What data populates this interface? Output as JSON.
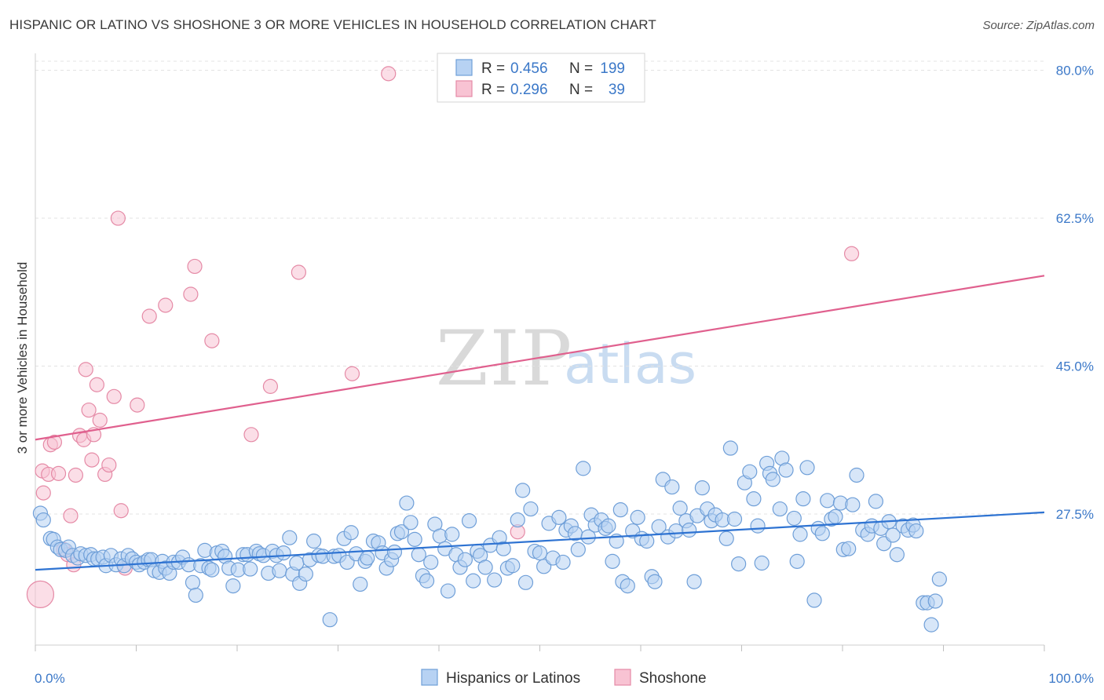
{
  "title": "HISPANIC OR LATINO VS SHOSHONE 3 OR MORE VEHICLES IN HOUSEHOLD CORRELATION CHART",
  "source": "Source: ZipAtlas.com",
  "watermark": {
    "part1": "ZIP",
    "part2": "atlas"
  },
  "colors": {
    "blue_fill": "#b7d2f3",
    "blue_stroke": "#6f9fd8",
    "blue_line": "#2e73d2",
    "pink_fill": "#f8c3d3",
    "pink_stroke": "#e58aa6",
    "pink_line": "#e0608e",
    "tick_text": "#3b78c8",
    "grid": "#e3e3e3"
  },
  "legend": {
    "rows": [
      {
        "r_label": "R =",
        "r_value": "0.456",
        "n_label": "N =",
        "n_value": "199"
      },
      {
        "r_label": "R =",
        "r_value": "0.296",
        "n_label": "N =",
        "n_value": "39"
      }
    ]
  },
  "chart_data": {
    "type": "scatter",
    "xlabel": "",
    "ylabel": "3 or more Vehicles in Household",
    "xlim": [
      0,
      100
    ],
    "ylim": [
      12,
      82
    ],
    "x_tick_labels": [
      "0.0%",
      "100.0%"
    ],
    "y_ticks": [
      {
        "value": 80,
        "label": "80.0%"
      },
      {
        "value": 62.5,
        "label": "62.5%"
      },
      {
        "value": 45,
        "label": "45.0%"
      },
      {
        "value": 27.5,
        "label": "27.5%"
      }
    ],
    "grid": true,
    "legend_position": "top-center",
    "series": [
      {
        "name": "Hispanics or Latinos",
        "color": "#b7d2f3",
        "R": 0.456,
        "N": 199,
        "trend": {
          "x": [
            0,
            100
          ],
          "y": [
            20.9,
            27.7
          ]
        },
        "points": [
          [
            0.5,
            27.6
          ],
          [
            0.8,
            26.8
          ],
          [
            1.5,
            24.6
          ],
          [
            1.8,
            24.5
          ],
          [
            2.2,
            23.6
          ],
          [
            2.5,
            23.3
          ],
          [
            3.0,
            23.2
          ],
          [
            3.3,
            23.6
          ],
          [
            3.7,
            22.6
          ],
          [
            4.2,
            22.3
          ],
          [
            4.5,
            22.8
          ],
          [
            5.0,
            22.6
          ],
          [
            5.5,
            22.7
          ],
          [
            5.8,
            22.2
          ],
          [
            6.2,
            22.2
          ],
          [
            6.7,
            22.4
          ],
          [
            7.0,
            21.4
          ],
          [
            7.5,
            22.6
          ],
          [
            8.0,
            21.5
          ],
          [
            8.5,
            22.2
          ],
          [
            8.8,
            21.4
          ],
          [
            9.2,
            22.6
          ],
          [
            9.6,
            22.2
          ],
          [
            10.0,
            21.8
          ],
          [
            10.3,
            21.5
          ],
          [
            10.8,
            21.8
          ],
          [
            11.2,
            22.1
          ],
          [
            11.5,
            22.1
          ],
          [
            11.8,
            20.8
          ],
          [
            12.3,
            20.6
          ],
          [
            12.6,
            21.9
          ],
          [
            12.9,
            21.1
          ],
          [
            13.3,
            20.5
          ],
          [
            13.7,
            21.8
          ],
          [
            14.2,
            21.8
          ],
          [
            14.6,
            22.4
          ],
          [
            15.2,
            21.5
          ],
          [
            15.6,
            19.4
          ],
          [
            15.9,
            17.9
          ],
          [
            16.4,
            21.4
          ],
          [
            16.8,
            23.2
          ],
          [
            17.2,
            21.1
          ],
          [
            17.5,
            20.9
          ],
          [
            18.0,
            22.9
          ],
          [
            18.5,
            23.1
          ],
          [
            18.8,
            22.5
          ],
          [
            19.2,
            21.1
          ],
          [
            19.6,
            19.0
          ],
          [
            20.1,
            20.9
          ],
          [
            20.6,
            22.7
          ],
          [
            21.0,
            22.7
          ],
          [
            21.3,
            21.0
          ],
          [
            21.9,
            23.1
          ],
          [
            22.2,
            22.8
          ],
          [
            22.6,
            22.6
          ],
          [
            23.1,
            20.5
          ],
          [
            23.5,
            23.1
          ],
          [
            23.9,
            22.6
          ],
          [
            24.2,
            20.8
          ],
          [
            24.6,
            22.9
          ],
          [
            25.2,
            24.7
          ],
          [
            25.5,
            20.4
          ],
          [
            25.9,
            21.7
          ],
          [
            26.2,
            19.3
          ],
          [
            26.8,
            20.4
          ],
          [
            27.2,
            22.1
          ],
          [
            27.6,
            24.3
          ],
          [
            28.1,
            22.6
          ],
          [
            28.5,
            22.5
          ],
          [
            29.2,
            15.0
          ],
          [
            29.6,
            22.5
          ],
          [
            30.1,
            22.6
          ],
          [
            30.6,
            24.6
          ],
          [
            30.9,
            21.8
          ],
          [
            31.3,
            25.3
          ],
          [
            31.8,
            22.8
          ],
          [
            32.2,
            19.2
          ],
          [
            32.7,
            21.9
          ],
          [
            32.9,
            22.3
          ],
          [
            33.5,
            24.3
          ],
          [
            34.0,
            24.1
          ],
          [
            34.4,
            22.9
          ],
          [
            34.8,
            21.1
          ],
          [
            35.3,
            22.1
          ],
          [
            35.6,
            23.0
          ],
          [
            35.9,
            25.2
          ],
          [
            36.3,
            25.4
          ],
          [
            36.8,
            28.8
          ],
          [
            37.2,
            26.5
          ],
          [
            37.6,
            24.5
          ],
          [
            38.0,
            22.7
          ],
          [
            38.4,
            20.2
          ],
          [
            38.8,
            19.6
          ],
          [
            39.2,
            21.8
          ],
          [
            39.6,
            26.3
          ],
          [
            40.1,
            24.9
          ],
          [
            40.6,
            23.4
          ],
          [
            40.9,
            18.4
          ],
          [
            41.3,
            25.1
          ],
          [
            41.7,
            22.7
          ],
          [
            42.1,
            21.2
          ],
          [
            42.6,
            22.1
          ],
          [
            43.0,
            26.7
          ],
          [
            43.4,
            19.6
          ],
          [
            43.8,
            23.1
          ],
          [
            44.1,
            22.6
          ],
          [
            44.6,
            21.2
          ],
          [
            45.1,
            23.8
          ],
          [
            45.5,
            19.7
          ],
          [
            46.0,
            24.7
          ],
          [
            46.4,
            23.4
          ],
          [
            46.8,
            21.1
          ],
          [
            47.3,
            21.4
          ],
          [
            47.8,
            26.8
          ],
          [
            48.3,
            30.3
          ],
          [
            48.6,
            19.4
          ],
          [
            49.1,
            28.1
          ],
          [
            49.5,
            23.1
          ],
          [
            50.0,
            22.9
          ],
          [
            50.4,
            21.3
          ],
          [
            50.9,
            26.4
          ],
          [
            51.3,
            22.3
          ],
          [
            51.9,
            27.1
          ],
          [
            52.3,
            21.8
          ],
          [
            52.6,
            25.6
          ],
          [
            53.1,
            26.1
          ],
          [
            53.5,
            25.2
          ],
          [
            53.8,
            23.3
          ],
          [
            54.3,
            32.9
          ],
          [
            54.8,
            24.8
          ],
          [
            55.1,
            27.4
          ],
          [
            55.5,
            26.2
          ],
          [
            56.1,
            26.8
          ],
          [
            56.5,
            25.8
          ],
          [
            56.8,
            26.1
          ],
          [
            57.2,
            21.9
          ],
          [
            57.6,
            24.3
          ],
          [
            58.0,
            28.0
          ],
          [
            58.2,
            19.5
          ],
          [
            58.7,
            19.0
          ],
          [
            59.2,
            25.5
          ],
          [
            59.7,
            27.1
          ],
          [
            60.1,
            24.6
          ],
          [
            60.6,
            24.3
          ],
          [
            61.1,
            20.1
          ],
          [
            61.4,
            19.5
          ],
          [
            61.8,
            26.0
          ],
          [
            62.2,
            31.6
          ],
          [
            62.7,
            24.8
          ],
          [
            63.1,
            30.7
          ],
          [
            63.5,
            25.5
          ],
          [
            63.9,
            28.2
          ],
          [
            64.5,
            26.7
          ],
          [
            64.8,
            25.6
          ],
          [
            65.3,
            19.5
          ],
          [
            65.6,
            27.3
          ],
          [
            66.1,
            30.6
          ],
          [
            66.6,
            28.1
          ],
          [
            67.0,
            26.7
          ],
          [
            67.4,
            27.4
          ],
          [
            68.1,
            26.8
          ],
          [
            68.5,
            24.6
          ],
          [
            68.9,
            35.3
          ],
          [
            69.3,
            26.9
          ],
          [
            69.7,
            21.6
          ],
          [
            70.3,
            31.2
          ],
          [
            70.8,
            32.5
          ],
          [
            71.2,
            29.3
          ],
          [
            71.6,
            26.1
          ],
          [
            72.0,
            21.7
          ],
          [
            72.5,
            33.5
          ],
          [
            72.8,
            32.3
          ],
          [
            73.1,
            31.6
          ],
          [
            73.8,
            28.1
          ],
          [
            74.0,
            34.1
          ],
          [
            74.4,
            32.7
          ],
          [
            75.2,
            27.0
          ],
          [
            75.5,
            21.9
          ],
          [
            75.8,
            25.1
          ],
          [
            76.1,
            29.3
          ],
          [
            76.5,
            33.0
          ],
          [
            77.2,
            17.3
          ],
          [
            77.6,
            25.8
          ],
          [
            78.0,
            25.2
          ],
          [
            78.5,
            29.1
          ],
          [
            78.9,
            26.9
          ],
          [
            79.3,
            27.2
          ],
          [
            79.8,
            28.8
          ],
          [
            80.1,
            23.3
          ],
          [
            80.6,
            23.4
          ],
          [
            81.0,
            28.6
          ],
          [
            81.4,
            32.1
          ],
          [
            82.0,
            25.6
          ],
          [
            82.5,
            25.1
          ],
          [
            82.9,
            26.1
          ],
          [
            83.3,
            29.0
          ],
          [
            83.8,
            25.8
          ],
          [
            84.1,
            24.0
          ],
          [
            84.6,
            26.6
          ],
          [
            85.0,
            25.0
          ],
          [
            85.4,
            22.7
          ],
          [
            86.0,
            26.1
          ],
          [
            86.5,
            25.6
          ],
          [
            87.0,
            26.2
          ],
          [
            87.3,
            25.5
          ],
          [
            88.0,
            17.0
          ],
          [
            88.4,
            17.0
          ],
          [
            88.8,
            14.4
          ],
          [
            89.2,
            17.2
          ],
          [
            89.6,
            19.8
          ]
        ]
      },
      {
        "name": "Shoshone",
        "color": "#f8c3d3",
        "R": 0.296,
        "N": 39,
        "trend": {
          "x": [
            0,
            100
          ],
          "y": [
            36.3,
            55.7
          ]
        },
        "points": [
          [
            0.5,
            18.0
          ],
          [
            0.7,
            32.6
          ],
          [
            0.8,
            30.0
          ],
          [
            1.3,
            32.2
          ],
          [
            1.5,
            35.7
          ],
          [
            1.9,
            36.0
          ],
          [
            2.3,
            32.3
          ],
          [
            2.8,
            23.3
          ],
          [
            3.2,
            22.7
          ],
          [
            3.5,
            27.3
          ],
          [
            3.8,
            21.5
          ],
          [
            4.0,
            32.1
          ],
          [
            4.4,
            36.8
          ],
          [
            4.8,
            36.3
          ],
          [
            5.0,
            44.6
          ],
          [
            5.3,
            39.8
          ],
          [
            5.6,
            33.9
          ],
          [
            5.8,
            36.9
          ],
          [
            6.1,
            42.8
          ],
          [
            6.4,
            38.6
          ],
          [
            6.9,
            32.2
          ],
          [
            7.3,
            33.3
          ],
          [
            7.8,
            41.4
          ],
          [
            8.2,
            62.5
          ],
          [
            8.5,
            27.9
          ],
          [
            8.9,
            21.1
          ],
          [
            10.1,
            40.4
          ],
          [
            11.3,
            50.9
          ],
          [
            12.9,
            52.2
          ],
          [
            15.4,
            53.5
          ],
          [
            15.8,
            56.8
          ],
          [
            17.5,
            48.0
          ],
          [
            21.4,
            36.9
          ],
          [
            23.3,
            42.6
          ],
          [
            26.1,
            56.1
          ],
          [
            31.4,
            44.1
          ],
          [
            35.0,
            79.6
          ],
          [
            47.8,
            25.4
          ],
          [
            80.9,
            58.3
          ]
        ]
      }
    ]
  },
  "bottom_legend": {
    "items": [
      "Hispanics or Latinos",
      "Shoshone"
    ]
  }
}
